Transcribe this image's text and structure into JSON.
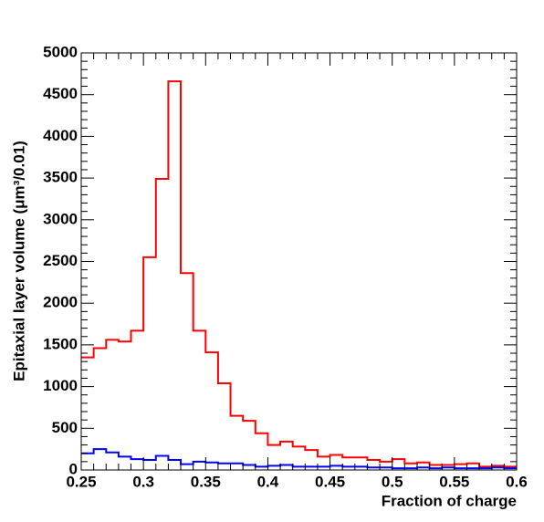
{
  "chart_data": {
    "type": "histogram",
    "xlabel": "Fraction of charge",
    "ylabel": "Epitaxial layer volume (μm³/0.01)",
    "bins": [
      0.25,
      0.26,
      0.27,
      0.28,
      0.29,
      0.3,
      0.31,
      0.32,
      0.33,
      0.34,
      0.35,
      0.36,
      0.37,
      0.38,
      0.39,
      0.4,
      0.41,
      0.42,
      0.43,
      0.44,
      0.45,
      0.46,
      0.47,
      0.48,
      0.49,
      0.5,
      0.51,
      0.52,
      0.53,
      0.54,
      0.55,
      0.56,
      0.57,
      0.58,
      0.59,
      0.6
    ],
    "series": [
      {
        "color": "#ff0000",
        "values": [
          1350,
          1460,
          1560,
          1540,
          1670,
          2550,
          3490,
          4660,
          2360,
          1670,
          1410,
          1040,
          650,
          590,
          440,
          300,
          340,
          280,
          240,
          160,
          180,
          150,
          150,
          120,
          100,
          130,
          80,
          90,
          60,
          60,
          70,
          80,
          40,
          50,
          40
        ]
      },
      {
        "color": "#0000ff",
        "values": [
          200,
          250,
          210,
          160,
          130,
          120,
          170,
          120,
          70,
          100,
          90,
          80,
          80,
          60,
          40,
          50,
          60,
          40,
          40,
          40,
          50,
          40,
          40,
          30,
          30,
          20,
          20,
          30,
          20,
          30,
          20,
          20,
          20,
          30,
          20
        ]
      }
    ],
    "xlim": [
      0.25,
      0.6
    ],
    "xticks": [
      0.25,
      0.3,
      0.35,
      0.4,
      0.45,
      0.5,
      0.55,
      0.6
    ],
    "ylim": [
      0,
      5000
    ],
    "yticks": [
      0,
      500,
      1000,
      1500,
      2000,
      2500,
      3000,
      3500,
      4000,
      4500,
      5000
    ]
  }
}
